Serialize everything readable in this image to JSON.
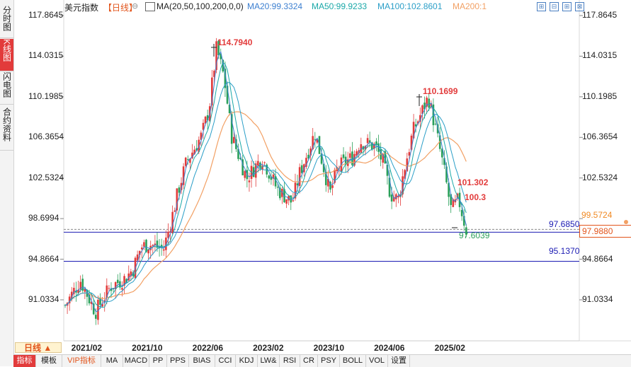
{
  "sidebar": {
    "tabs": [
      {
        "label": "分时图",
        "active": false
      },
      {
        "label": "K线图",
        "active": true
      },
      {
        "label": "闪电图",
        "active": false
      },
      {
        "label": "合约资料",
        "active": false
      }
    ]
  },
  "header": {
    "title": "美元指数",
    "period": "【日线】",
    "gear": "⊖",
    "ma_label": "MA(20,50,100,200,0,0)",
    "ma20": "MA20:99.3324",
    "ma50": "MA50:99.9233",
    "ma100": "MA100:102.8601",
    "ma200": "MA200:1"
  },
  "toolbar_icons": [
    "grid-expand-icon",
    "grid-minus-icon",
    "grid-plus-icon",
    "grid-shrink-icon",
    "zoom-plus-icon",
    "zoom-minus-icon"
  ],
  "y_axis": {
    "labels_left": [
      "117.8645",
      "114.0315",
      "110.1985",
      "106.3654",
      "102.5324",
      "98.6994",
      "94.8664",
      "91.0334"
    ],
    "labels_right": [
      "117.8645",
      "114.0315",
      "110.1985",
      "106.3654",
      "102.5324",
      "94.8664",
      "91.0334"
    ]
  },
  "annotations": {
    "high_2022": "114.7940",
    "high_2025": "110.1699",
    "low_label": "97.6039",
    "level_upper": "97.6850",
    "level_lower": "95.1370",
    "label_101": "101.302",
    "label_100": "100.3",
    "price_tag_1": "99.5724",
    "price_tag_2": "97.9880"
  },
  "colors": {
    "up": "#e23b3b",
    "down": "#2aa05a",
    "ma20": "#3c7fd0",
    "ma50": "#1aa8a8",
    "ma100": "#2a9ec7",
    "ma200": "#f2a064",
    "level": "#1b1bb3"
  },
  "x_axis": {
    "period_button": "日线 ▲",
    "labels": [
      "2021/02",
      "2021/10",
      "2022/06",
      "2023/02",
      "2023/10",
      "2024/06",
      "2025/02"
    ]
  },
  "bottom_tabs": [
    {
      "label": "指标",
      "active": true,
      "vip": false
    },
    {
      "label": "模板",
      "active": false,
      "vip": false
    },
    {
      "label": "VIP指标",
      "active": false,
      "vip": true
    },
    {
      "label": "MA",
      "active": false,
      "vip": false
    },
    {
      "label": "MACD",
      "active": false,
      "vip": false
    },
    {
      "label": "PP",
      "active": false,
      "vip": false
    },
    {
      "label": "PPS",
      "active": false,
      "vip": false
    },
    {
      "label": "BIAS",
      "active": false,
      "vip": false
    },
    {
      "label": "CCI",
      "active": false,
      "vip": false
    },
    {
      "label": "KDJ",
      "active": false,
      "vip": false
    },
    {
      "label": "LW&",
      "active": false,
      "vip": false
    },
    {
      "label": "RSI",
      "active": false,
      "vip": false
    },
    {
      "label": "CR",
      "active": false,
      "vip": false
    },
    {
      "label": "PSY",
      "active": false,
      "vip": false
    },
    {
      "label": "BOLL",
      "active": false,
      "vip": false
    },
    {
      "label": "VOL",
      "active": false,
      "vip": false
    },
    {
      "label": "设置",
      "active": false,
      "vip": false
    }
  ],
  "chart_data": {
    "type": "candlestick",
    "ylim": [
      89.5,
      119.5
    ],
    "y_ticks": [
      117.8645,
      114.0315,
      110.1985,
      106.3654,
      102.5324,
      98.6994,
      94.8664,
      91.0334
    ],
    "horizontal_levels": [
      97.685,
      95.137
    ],
    "close_path": [
      [
        "2021/01",
        90.5
      ],
      [
        "2021/03",
        92.9
      ],
      [
        "2021/05",
        89.9
      ],
      [
        "2021/07",
        92.3
      ],
      [
        "2021/09",
        93.1
      ],
      [
        "2021/10",
        94.0
      ],
      [
        "2021/11",
        96.0
      ],
      [
        "2021/12",
        96.3
      ],
      [
        "2022/02",
        95.8
      ],
      [
        "2022/03",
        98.5
      ],
      [
        "2022/04",
        101.5
      ],
      [
        "2022/05",
        104.0
      ],
      [
        "2022/07",
        106.5
      ],
      [
        "2022/08",
        109.0
      ],
      [
        "2022/09",
        114.794
      ],
      [
        "2022/10",
        112.0
      ],
      [
        "2022/11",
        106.5
      ],
      [
        "2023/01",
        102.5
      ],
      [
        "2023/03",
        104.5
      ],
      [
        "2023/05",
        101.5
      ],
      [
        "2023/07",
        100.2
      ],
      [
        "2023/08",
        103.0
      ],
      [
        "2023/10",
        106.8
      ],
      [
        "2023/11",
        104.0
      ],
      [
        "2023/12",
        101.0
      ],
      [
        "2024/01",
        103.5
      ],
      [
        "2024/03",
        104.5
      ],
      [
        "2024/04",
        106.0
      ],
      [
        "2024/06",
        105.5
      ],
      [
        "2024/07",
        104.0
      ],
      [
        "2024/08",
        101.0
      ],
      [
        "2024/09",
        100.5
      ],
      [
        "2024/10",
        104.0
      ],
      [
        "2024/11",
        107.0
      ],
      [
        "2025/01",
        110.1699
      ],
      [
        "2025/02",
        107.0
      ],
      [
        "2025/03",
        103.5
      ],
      [
        "2025/04",
        99.5
      ],
      [
        "2025/05",
        100.5
      ],
      [
        "2025/06",
        97.6039
      ]
    ]
  }
}
